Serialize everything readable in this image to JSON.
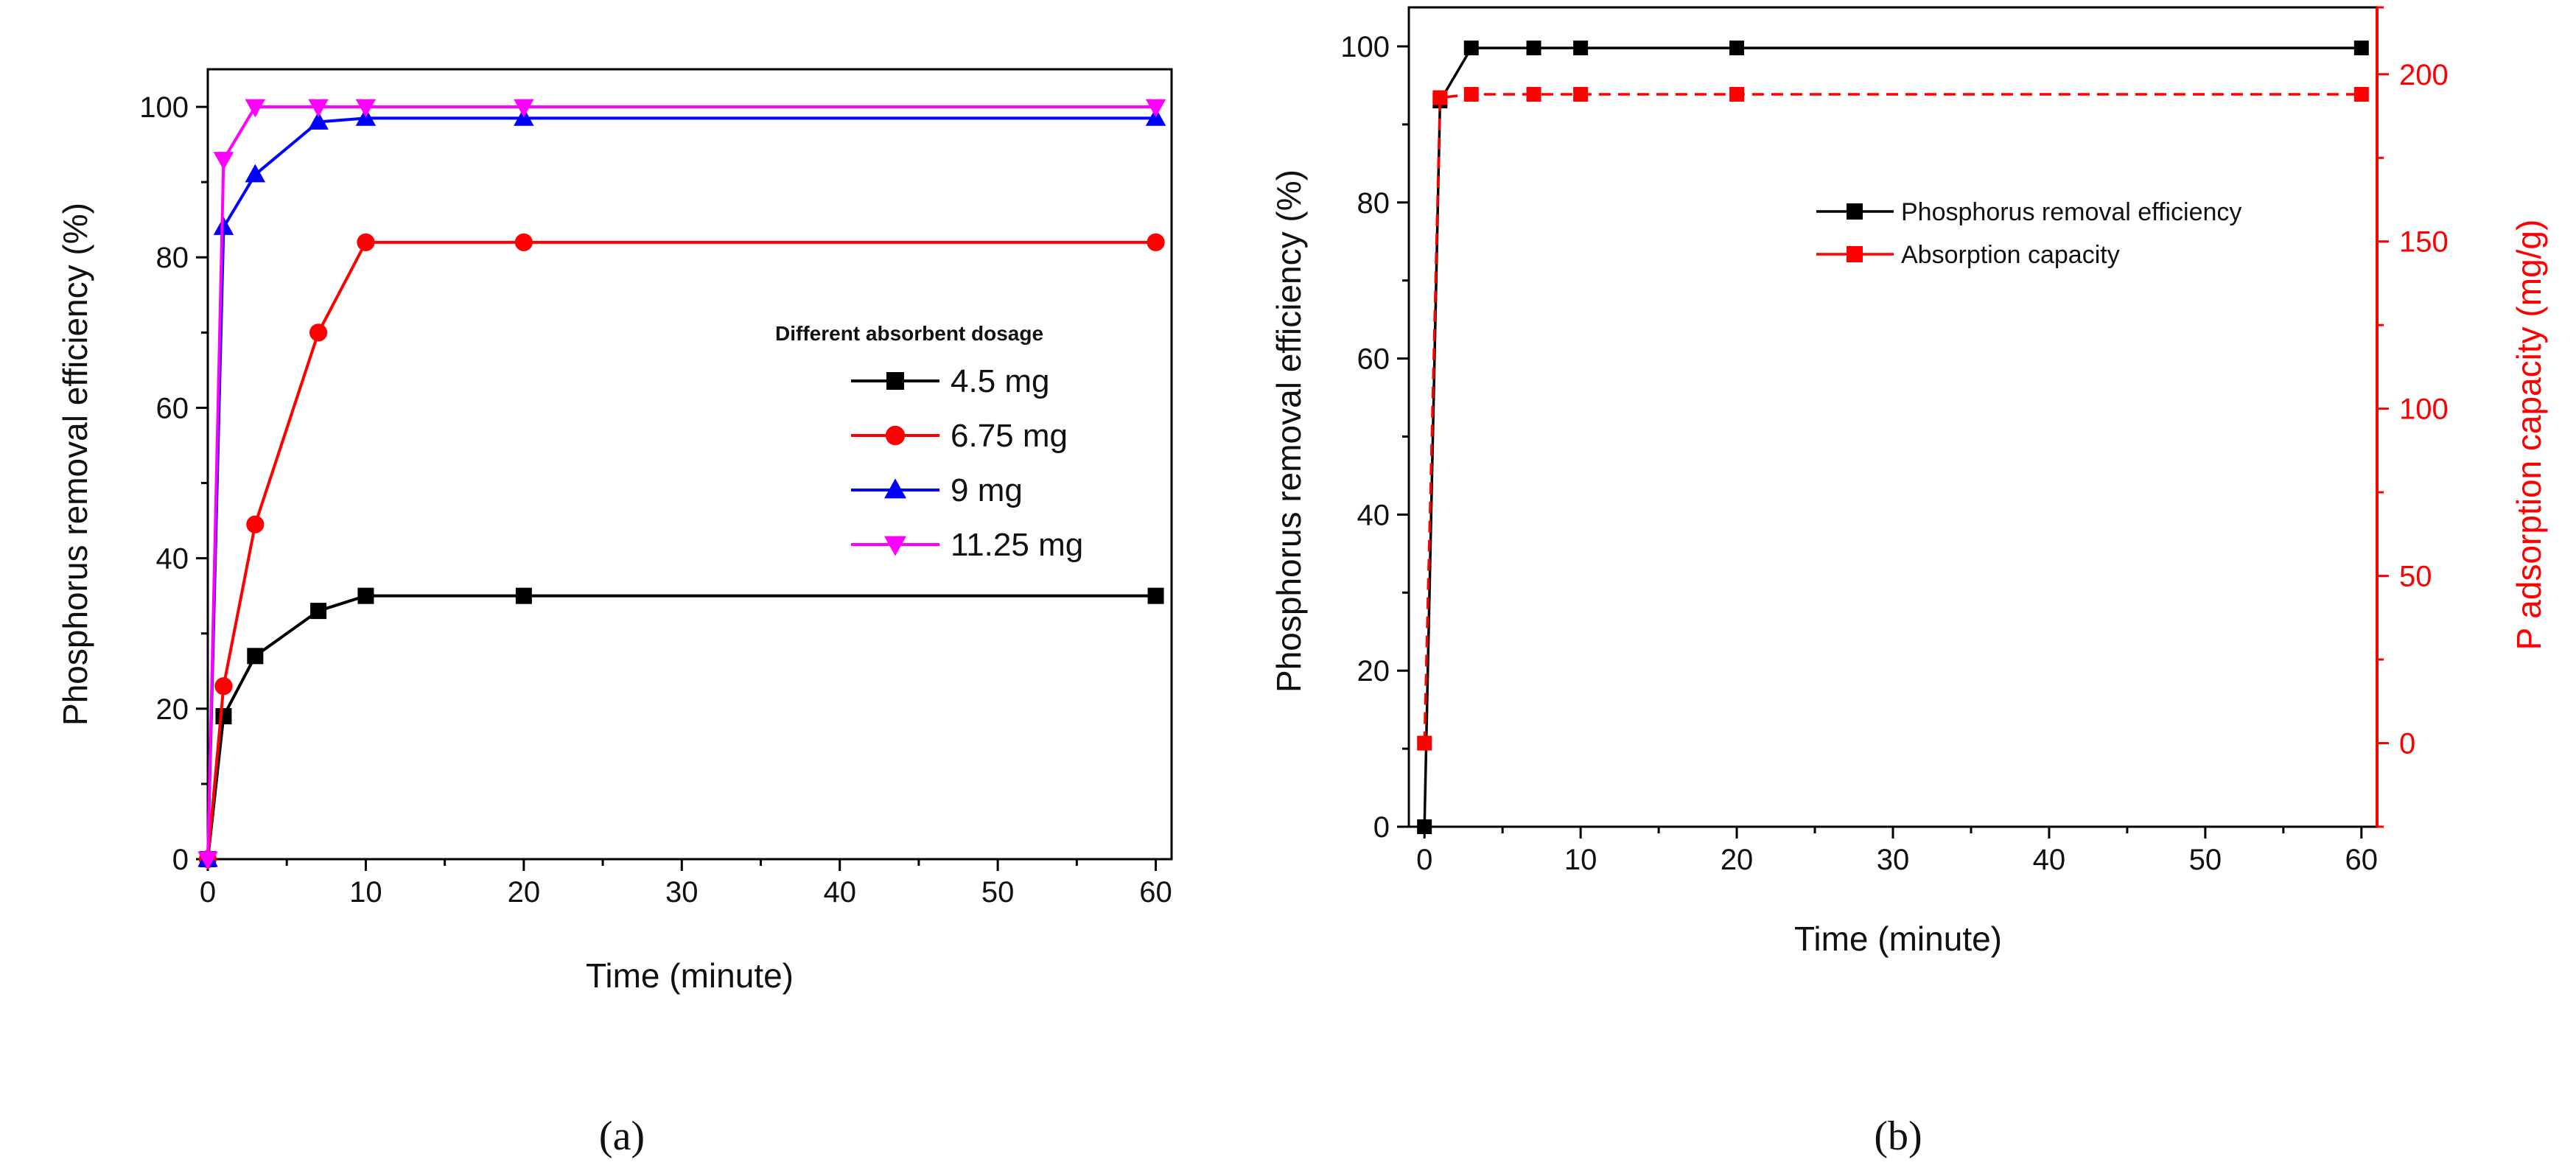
{
  "chart_data": [
    {
      "type": "line",
      "panel_label": "(a)",
      "xlabel": "Time (minute)",
      "ylabel": "Phosphorus removal efficiency (%)",
      "xlim": [
        0,
        61
      ],
      "ylim": [
        0,
        105
      ],
      "xticks": [
        "0",
        "10",
        "20",
        "30",
        "40",
        "50",
        "60"
      ],
      "yticks": [
        "0",
        "20",
        "40",
        "60",
        "80",
        "100"
      ],
      "grid": false,
      "legend_title": "Different absorbent dosage",
      "legend_position": "right",
      "series": [
        {
          "name": "4.5 mg",
          "color": "#000000",
          "marker": "square",
          "x": [
            0,
            1,
            3,
            7,
            10,
            20,
            60
          ],
          "y": [
            0,
            19,
            27,
            33,
            35,
            35,
            35
          ]
        },
        {
          "name": "6.75 mg",
          "color": "#ff0000",
          "marker": "circle",
          "x": [
            0,
            1,
            3,
            7,
            10,
            20,
            60
          ],
          "y": [
            0,
            23,
            44.5,
            70,
            82,
            82,
            82
          ]
        },
        {
          "name": "9 mg",
          "color": "#0000ff",
          "marker": "triangle-up",
          "x": [
            0,
            1,
            3,
            7,
            10,
            20,
            60
          ],
          "y": [
            0,
            84,
            91,
            98,
            98.5,
            98.5,
            98.5
          ]
        },
        {
          "name": "11.25 mg",
          "color": "#ff00ff",
          "marker": "triangle-down",
          "x": [
            0,
            1,
            3,
            7,
            10,
            20,
            60
          ],
          "y": [
            0,
            93,
            100,
            100,
            100,
            100,
            100
          ]
        }
      ]
    },
    {
      "type": "line",
      "panel_label": "(b)",
      "xlabel": "Time (minute)",
      "ylabel": "Phosphorus removal efficiency (%)",
      "ylabel_right": "P adsorption capacity (mg/g)",
      "xlim": [
        -1,
        61
      ],
      "ylim": [
        0,
        105
      ],
      "ylim_right": [
        -25,
        220
      ],
      "xticks": [
        "0",
        "10",
        "20",
        "30",
        "40",
        "50",
        "60"
      ],
      "yticks": [
        "0",
        "20",
        "40",
        "60",
        "80",
        "100"
      ],
      "yticks_right": [
        "0",
        "50",
        "100",
        "150",
        "200"
      ],
      "grid": false,
      "legend_position": "upper-right",
      "series": [
        {
          "name": "Phosphorus removal efficiency",
          "color": "#000000",
          "marker": "square",
          "axis": "left",
          "x": [
            0,
            1,
            3,
            7,
            10,
            20,
            60
          ],
          "y": [
            0,
            93,
            99.8,
            99.8,
            99.8,
            99.8,
            99.8
          ]
        },
        {
          "name": "Absorption capacity",
          "color": "#ff0000",
          "marker": "square",
          "axis": "right",
          "x": [
            0,
            1,
            3,
            7,
            10,
            20,
            60
          ],
          "y": [
            0,
            193,
            194,
            194,
            194,
            194,
            194
          ]
        }
      ]
    }
  ]
}
